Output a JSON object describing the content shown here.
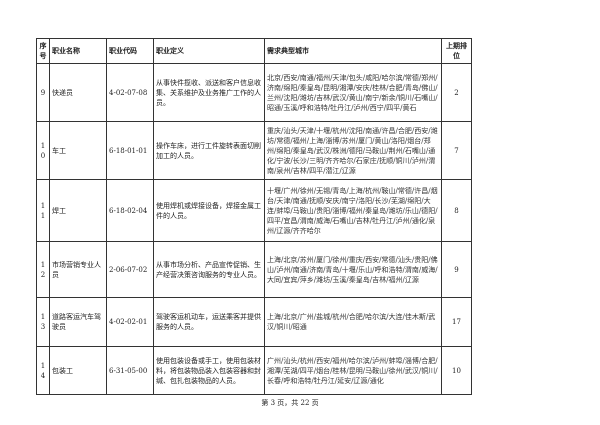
{
  "headers": {
    "index": "序号",
    "name": "职业名称",
    "code": "职业代码",
    "definition": "职业定义",
    "cities": "需求典型城市",
    "last_rank": "上期排位"
  },
  "rows": [
    {
      "index": "9",
      "name": "快递员",
      "code": "4-02-07-08",
      "definition": "从事快件揽收、派送和客户信息收集、关系维护及业务推广工作的人员。",
      "cities": "北京/西安/南通/福州/天津/包头/咸阳/哈尔滨/常德/郑州/济南/绵阳/秦皇岛/昆明/湘潭/安庆/桂林/合肥/青岛/佛山/兰州/沈阳/潍坊/吉林/武汉/黄山/南宁/新余/铜川/石嘴山/昭通/玉溪/呼和浩特/牡丹江/泸州/西宁/四平/黄石",
      "last_rank": "2"
    },
    {
      "index": "10",
      "name": "车工",
      "code": "6-18-01-01",
      "definition": "操作车床，进行工件旋转表面切削加工的人员。",
      "cities": "重庆/汕头/天津/十堰/杭州/沈阳/南通/许昌/合肥/西安/潍坊/常德/福州/上海/淄博/苏州/厦门/黄山/洛阳/烟台/郑州/绵阳/秦皇岛/武汉/株洲/德阳/马鞍山/荆州/石嘴山/通化/宁波/长沙/三明/齐齐哈尔/石家庄/抚顺/铜川/泸州/渭南/泉州/吉林/四平/潜江/辽源",
      "last_rank": "7"
    },
    {
      "index": "11",
      "name": "焊工",
      "code": "6-18-02-04",
      "definition": "使用焊机或焊接设备，焊接金属工件的人员。",
      "cities": "十堰/广州/徐州/无锡/青岛/上海/杭州/鞍山/常德/许昌/烟台/天津/南通/抚顺/安庆/南宁/洛阳/长沙/芜湖/绵阳/大连/蚌埠/马鞍山/贵阳/淄博/福州/秦皇岛/潍坊/乐山/德阳/四平/宜昌/渭南/威海/石嘴山/吉林/牡丹江/泸州/通化/泉州/辽源/齐齐哈尔",
      "last_rank": "8"
    },
    {
      "index": "12",
      "name": "市场营销专业人员",
      "code": "2-06-07-02",
      "definition": "从事市场分析、产品宣传促销、生产经营决策咨询服务的专业人员。",
      "cities": "上海/北京/苏州/厦门/徐州/重庆/西安/常德/汕头/贵阳/佛山/泸州/南通/济南/青岛/十堰/乐山/呼和浩特/渭南/威海/大同/宜宾/萍乡/潍坊/玉溪/秦皇岛/吉林/福州/辽源",
      "last_rank": "9"
    },
    {
      "index": "13",
      "name": "道路客运汽车驾驶员",
      "code": "4-02-02-01",
      "definition": "驾驶客运机动车，运送乘客并提供服务的人员。",
      "cities": "上海/北京/广州/盐城/杭州/合肥/哈尔滨/大连/佳木斯/武汉/铜川/昭通",
      "last_rank": "17"
    },
    {
      "index": "14",
      "name": "包装工",
      "code": "6-31-05-00",
      "definition": "使用包装设备或手工，使用包装材料，将包装物品装入包装容器和封缄、包扎包装物品的人员。",
      "cities": "广州/汕头/杭州/西安/福州/哈尔滨/泸州/蚌埠/淄博/合肥/湘潭/芜湖/四平/烟台/桂林/昆明/马鞍山/徐州/武汉/铜川/长春/呼和浩特/牡丹江/延安/辽源/通化",
      "last_rank": "10"
    }
  ],
  "footer": "第 3 页，共 22 页"
}
